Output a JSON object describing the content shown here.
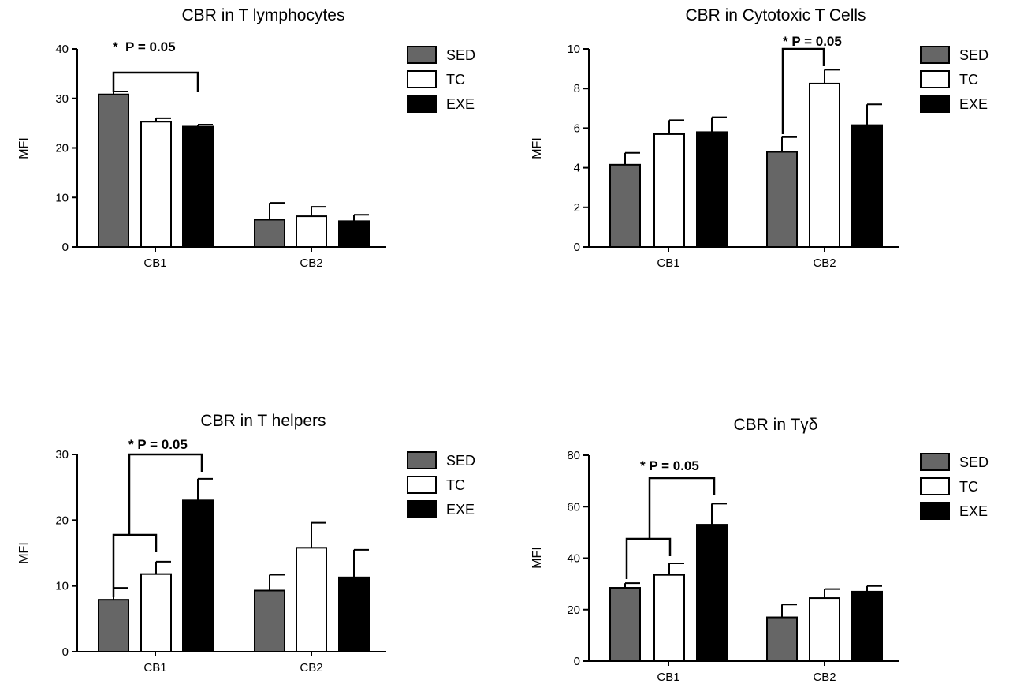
{
  "colors": {
    "SED": "#666666",
    "TC": "#ffffff",
    "EXE": "#000000",
    "axis": "#000000"
  },
  "legend": [
    "SED",
    "TC",
    "EXE"
  ],
  "chart_data": [
    {
      "type": "bar",
      "title": "CBR in T lymphocytes",
      "ylabel": "MFI",
      "xlabel": "",
      "categories": [
        "CB1",
        "CB2"
      ],
      "ylim": [
        0,
        40
      ],
      "yticks": [
        0,
        10,
        20,
        30,
        40
      ],
      "series": [
        {
          "name": "SED",
          "values": [
            30.8,
            5.5
          ],
          "errors": [
            0.6,
            3.4
          ]
        },
        {
          "name": "TC",
          "values": [
            25.3,
            6.2
          ],
          "errors": [
            0.7,
            1.9
          ]
        },
        {
          "name": "EXE",
          "values": [
            24.3,
            5.2
          ],
          "errors": [
            0.4,
            1.3
          ]
        }
      ],
      "annotation": {
        "text": "*  P = 0.05"
      },
      "legend_position": "right"
    },
    {
      "type": "bar",
      "title": "CBR in Cytotoxic T Cells",
      "ylabel": "MFI",
      "xlabel": "",
      "categories": [
        "CB1",
        "CB2"
      ],
      "ylim": [
        0,
        10
      ],
      "yticks": [
        0,
        2,
        4,
        6,
        8,
        10
      ],
      "series": [
        {
          "name": "SED",
          "values": [
            4.15,
            4.8
          ],
          "errors": [
            0.6,
            0.75
          ]
        },
        {
          "name": "TC",
          "values": [
            5.7,
            8.25
          ],
          "errors": [
            0.7,
            0.7
          ]
        },
        {
          "name": "EXE",
          "values": [
            5.8,
            6.15
          ],
          "errors": [
            0.75,
            1.05
          ]
        }
      ],
      "annotation": {
        "text": "* P = 0.05"
      },
      "legend_position": "right"
    },
    {
      "type": "bar",
      "title": "CBR in T helpers",
      "ylabel": "MFI",
      "xlabel": "",
      "categories": [
        "CB1",
        "CB2"
      ],
      "ylim": [
        0,
        30
      ],
      "yticks": [
        0,
        10,
        20,
        30
      ],
      "series": [
        {
          "name": "SED",
          "values": [
            7.9,
            9.3
          ],
          "errors": [
            1.8,
            2.4
          ]
        },
        {
          "name": "TC",
          "values": [
            11.8,
            15.8
          ],
          "errors": [
            1.9,
            3.8
          ]
        },
        {
          "name": "EXE",
          "values": [
            23.0,
            11.3
          ],
          "errors": [
            3.3,
            4.2
          ]
        }
      ],
      "annotation": {
        "text": "* P = 0.05"
      },
      "legend_position": "right"
    },
    {
      "type": "bar",
      "title": "CBR in Tγδ",
      "ylabel": "MFI",
      "xlabel": "",
      "categories": [
        "CB1",
        "CB2"
      ],
      "ylim": [
        0,
        80
      ],
      "yticks": [
        0,
        20,
        40,
        60,
        80
      ],
      "series": [
        {
          "name": "SED",
          "values": [
            28.5,
            17.0
          ],
          "errors": [
            1.8,
            5.0
          ]
        },
        {
          "name": "TC",
          "values": [
            33.5,
            24.5
          ],
          "errors": [
            4.5,
            3.5
          ]
        },
        {
          "name": "EXE",
          "values": [
            53.0,
            27.0
          ],
          "errors": [
            8.2,
            2.2
          ]
        }
      ],
      "annotation": {
        "text": "* P = 0.05"
      },
      "legend_position": "right"
    }
  ]
}
